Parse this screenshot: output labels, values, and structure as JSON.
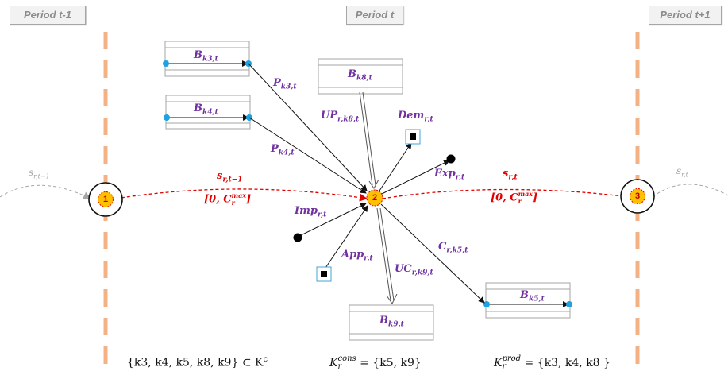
{
  "periods": {
    "prev": "Period t-1",
    "curr": "Period t",
    "next": "Period t+1"
  },
  "nodes": {
    "n1": "1",
    "n2": "2",
    "n3": "3"
  },
  "boxes": {
    "bk3": "B",
    "bk3_sub": "k3,t",
    "bk4": "B",
    "bk4_sub": "k4,t",
    "bk8": "B",
    "bk8_sub": "k8,t",
    "bk5": "B",
    "bk5_sub": "k5,t",
    "bk9": "B",
    "bk9_sub": "k9,t"
  },
  "arc_labels": {
    "p_k3": "P",
    "p_k3_sub": "k3,t",
    "p_k4": "P",
    "p_k4_sub": "k4,t",
    "up": "UP",
    "up_sub": "r,k8,t",
    "dem": "Dem",
    "dem_sub": "r,t",
    "exp": "Exp",
    "exp_sub": "r,t",
    "imp": "Imp",
    "imp_sub": "r,t",
    "app": "App",
    "app_sub": "r,t",
    "uc": "UC",
    "uc_sub": "r,k9,t",
    "c": "C",
    "c_sub": "r,k5,t"
  },
  "storage": {
    "s_prev": "s",
    "s_prev_sub": "r,t−1",
    "s_curr": "s",
    "s_curr_sub": "r,t",
    "bound_prev": "[0, C",
    "bound_prev_sup": "max",
    "bound_prev_sub": "r",
    "bound_prev_end": "]",
    "bound_curr": "[0, C",
    "bound_curr_sup": "max",
    "bound_curr_sub": "r",
    "bound_curr_end": "]",
    "ghost_left": "s",
    "ghost_left_sub": "r,t−1",
    "ghost_right": "s",
    "ghost_right_sub": "r,t"
  },
  "formulas": {
    "set_kc": "{k3, k4, k5, k8, k9} ⊂ K",
    "set_kc_sup": "c",
    "kcons_base": "K",
    "kcons_sup": "cons",
    "kcons_sub": "r",
    "kcons_rhs": "= {k5, k9}",
    "kprod_base": "K",
    "kprod_sup": "prod",
    "kprod_sub": "r",
    "kprod_rhs": "= {k3, k4, k8 }"
  },
  "colors": {
    "orange_dash": "#f4b183",
    "red_flow": "#e00000",
    "purple_label": "#7030a0",
    "node_fill": "#ffc000",
    "endpoint_blue": "#1fa2e0"
  }
}
